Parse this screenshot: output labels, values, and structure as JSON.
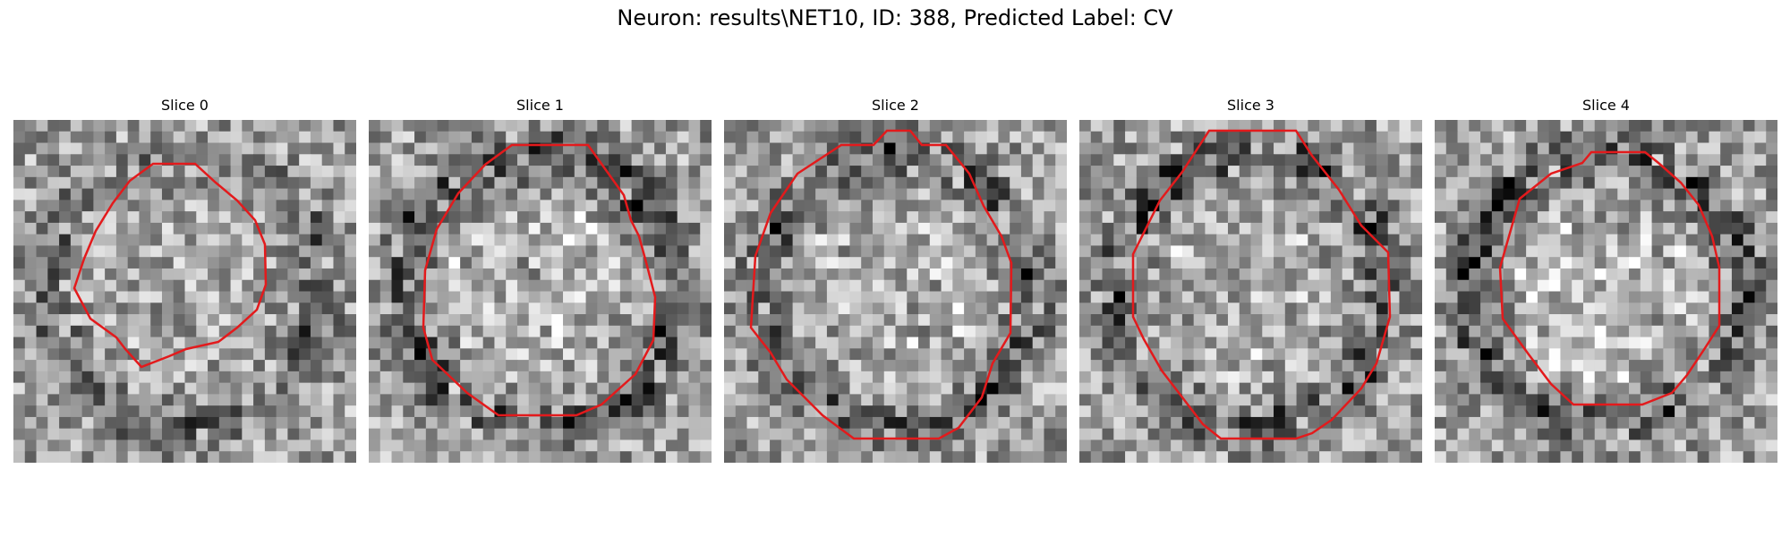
{
  "figure": {
    "title": "Neuron: results\\NET10, ID: 388, Predicted Label: CV"
  },
  "panels": [
    {
      "title": "Slice 0",
      "seed": 11,
      "ring_dark": 0.35,
      "center_bright": 0.05,
      "contour_color": "#e31a1c"
    },
    {
      "title": "Slice 1",
      "seed": 23,
      "ring_dark": 0.55,
      "center_bright": 0.15,
      "contour_color": "#e31a1c"
    },
    {
      "title": "Slice 2",
      "seed": 37,
      "ring_dark": 0.45,
      "center_bright": 0.15,
      "contour_color": "#e31a1c"
    },
    {
      "title": "Slice 3",
      "seed": 41,
      "ring_dark": 0.5,
      "center_bright": 0.1,
      "contour_color": "#e31a1c"
    },
    {
      "title": "Slice 4",
      "seed": 53,
      "ring_dark": 0.55,
      "center_bright": 0.2,
      "contour_color": "#e31a1c"
    }
  ],
  "colors": {
    "contour": "#e31a1c",
    "colormap": "gray"
  }
}
